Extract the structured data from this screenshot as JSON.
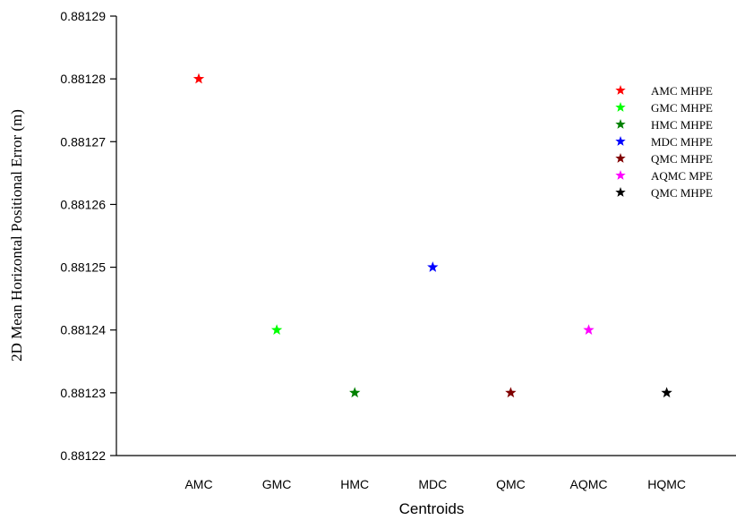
{
  "chart_data": {
    "type": "scatter",
    "title": "",
    "xlabel": "Centroids",
    "ylabel": "2D Mean Horizontal Positional Error (m)",
    "categories": [
      "AMC",
      "GMC",
      "HMC",
      "MDC",
      "QMC",
      "AQMC",
      "HQMC"
    ],
    "ylim": [
      0.88122,
      0.88129
    ],
    "yticks": [
      "0.88122",
      "0.88123",
      "0.88124",
      "0.88125",
      "0.88126",
      "0.88127",
      "0.88128",
      "0.88129"
    ],
    "grid": false,
    "legend_position": "right",
    "marker": "star",
    "series": [
      {
        "name": "AMC MHPE",
        "x": "AMC",
        "y": 0.88128,
        "color": "#ff0000"
      },
      {
        "name": "GMC MHPE",
        "x": "GMC",
        "y": 0.88124,
        "color": "#00ff00"
      },
      {
        "name": "HMC MHPE",
        "x": "HMC",
        "y": 0.88123,
        "color": "#008000"
      },
      {
        "name": "MDC MHPE",
        "x": "MDC",
        "y": 0.88125,
        "color": "#0000ff"
      },
      {
        "name": "QMC MHPE",
        "x": "QMC",
        "y": 0.88123,
        "color": "#800000"
      },
      {
        "name": "AQMC MPE",
        "x": "AQMC",
        "y": 0.88124,
        "color": "#ff00ff"
      },
      {
        "name": "QMC MHPE",
        "x": "HQMC",
        "y": 0.88123,
        "color": "#000000"
      }
    ]
  }
}
